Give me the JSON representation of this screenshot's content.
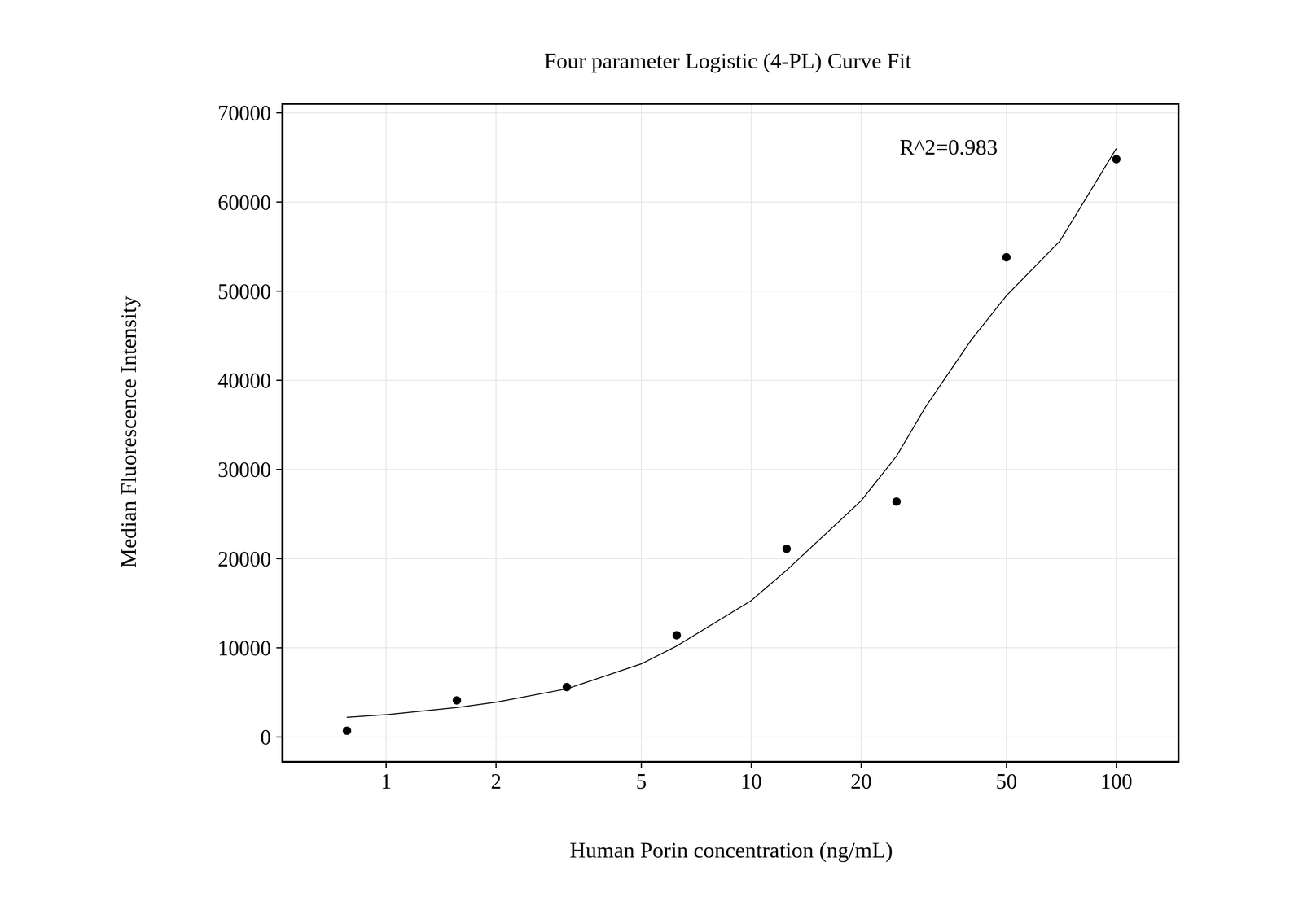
{
  "chart_data": {
    "type": "scatter",
    "title": "Four parameter Logistic (4-PL) Curve Fit",
    "x_label": "Human Porin concentration (ng/mL)",
    "y_label": "Median Fluorescence Intensity",
    "annotation": "R^2=0.983",
    "x": [
      0.78125,
      1.5625,
      3.125,
      6.25,
      12.5,
      25,
      50,
      100
    ],
    "values": [
      700,
      4100,
      5600,
      11400,
      21100,
      26400,
      53800,
      64800
    ],
    "marker": "circle",
    "color": "#000000",
    "fit_curve": {
      "type": "line",
      "line_style": "solid",
      "color": "#000000",
      "x": [
        0.78,
        1,
        1.5625,
        2,
        3.125,
        5,
        6.25,
        10,
        12.5,
        20,
        25,
        30,
        40,
        50,
        70,
        100
      ],
      "values": [
        2200,
        2500,
        3300,
        3900,
        5400,
        8200,
        10200,
        15300,
        18700,
        26500,
        31500,
        37000,
        44500,
        49500,
        55600,
        66000
      ]
    },
    "log": "x",
    "grid": true,
    "xlim": [
      0.52,
      148
    ],
    "ylim": [
      -2800,
      71000
    ],
    "xticks": [
      1,
      2,
      5,
      10,
      20,
      50,
      100
    ],
    "yticks": [
      0,
      10000,
      20000,
      30000,
      40000,
      50000,
      60000,
      70000
    ]
  }
}
